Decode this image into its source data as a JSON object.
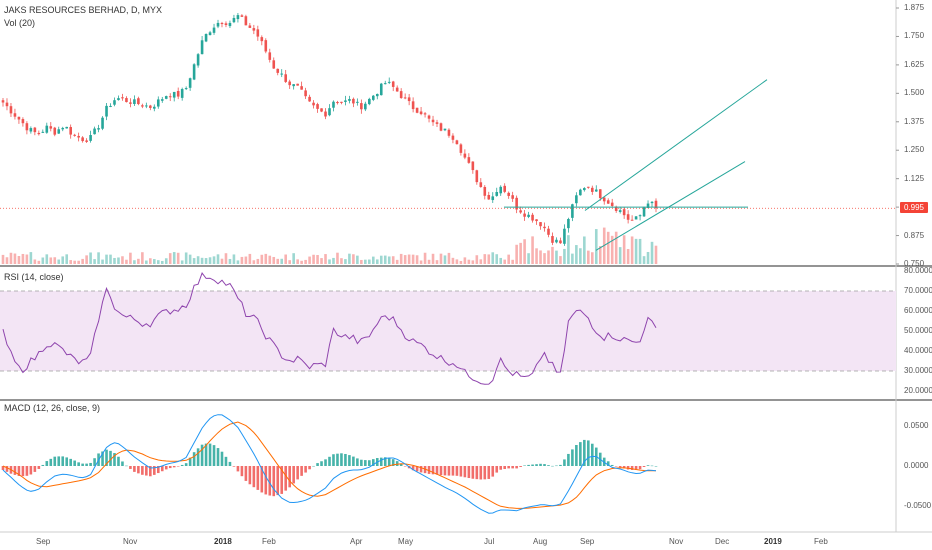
{
  "header": {
    "symbol_title": "JAKS RESOURCES BERHAD, D, MYX",
    "volume_label": "Vol (20)"
  },
  "rsi": {
    "label": "RSI (14, close)"
  },
  "macd": {
    "label": "MACD (12, 26, close, 9)"
  },
  "price_axis": {
    "ticks": [
      "1.875",
      "1.750",
      "1.625",
      "1.500",
      "1.375",
      "1.250",
      "1.125",
      "1.000",
      "0.875",
      "0.750"
    ],
    "last_price": "0.995"
  },
  "rsi_axis": {
    "ticks": [
      "80.0000",
      "70.0000",
      "60.0000",
      "50.0000",
      "40.0000",
      "30.0000",
      "20.0000"
    ]
  },
  "macd_axis": {
    "ticks": [
      "0.0500",
      "0.0000",
      "-0.0500"
    ]
  },
  "time_axis": {
    "labels": [
      "Sep",
      "Nov",
      "2018",
      "Feb",
      "Apr",
      "May",
      "Jul",
      "Aug",
      "Sep",
      "Nov",
      "Dec",
      "2019",
      "Feb"
    ]
  },
  "colors": {
    "up": "#26a69a",
    "down": "#ef5350",
    "rsi_line": "#8e44ad",
    "rsi_band": "#f3e5f5",
    "macd_line": "#2196f3",
    "signal_line": "#ff6d00",
    "trend_line": "#26a69a",
    "last_price": "#f44336"
  },
  "chart_data": [
    {
      "type": "candlestick",
      "title": "JAKS RESOURCES BERHAD, D, MYX",
      "x_labels": [
        "Sep",
        "Nov",
        "2018",
        "Feb",
        "Apr",
        "May",
        "Jul",
        "Aug",
        "Sep",
        "Nov",
        "Dec",
        "2019",
        "Feb"
      ],
      "ylim": [
        0.75,
        1.875
      ],
      "last_price": 0.995,
      "close_series": [
        1.46,
        1.42,
        1.38,
        1.34,
        1.32,
        1.35,
        1.33,
        1.36,
        1.32,
        1.3,
        1.3,
        1.36,
        1.44,
        1.48,
        1.47,
        1.46,
        1.45,
        1.44,
        1.47,
        1.5,
        1.49,
        1.52,
        1.63,
        1.74,
        1.79,
        1.82,
        1.81,
        1.84,
        1.8,
        1.77,
        1.7,
        1.62,
        1.58,
        1.54,
        1.52,
        1.46,
        1.43,
        1.41,
        1.47,
        1.46,
        1.47,
        1.44,
        1.47,
        1.51,
        1.55,
        1.52,
        1.48,
        1.44,
        1.42,
        1.38,
        1.35,
        1.33,
        1.3,
        1.22,
        1.15,
        1.08,
        1.03,
        1.1,
        1.06,
        1.0,
        0.97,
        0.95,
        0.92,
        0.86,
        0.84,
        0.96,
        1.06,
        1.1,
        1.07,
        1.04,
        1.01,
        0.98,
        0.94,
        0.95,
        1.03,
        0.995
      ],
      "volume_label": "Vol (20)"
    },
    {
      "type": "line",
      "name": "RSI (14, close)",
      "ylim": [
        15,
        80
      ],
      "band": [
        30,
        70
      ],
      "values": [
        49,
        37,
        30,
        34,
        38,
        44,
        43,
        40,
        36,
        34,
        36,
        57,
        72,
        60,
        57,
        56,
        54,
        54,
        58,
        60,
        61,
        63,
        72,
        78,
        77,
        75,
        73,
        66,
        58,
        56,
        49,
        43,
        38,
        35,
        36,
        32,
        33,
        33,
        51,
        47,
        47,
        44,
        47,
        54,
        58,
        55,
        49,
        45,
        43,
        40,
        37,
        35,
        34,
        29,
        27,
        25,
        24,
        36,
        30,
        28,
        26,
        28,
        40,
        33,
        27,
        56,
        60,
        58,
        51,
        47,
        48,
        46,
        45,
        44,
        56,
        51
      ]
    },
    {
      "type": "line",
      "name": "MACD (12, 26, close, 9)",
      "ylim": [
        -0.075,
        0.075
      ],
      "series": [
        {
          "name": "MACD",
          "values": [
            -0.005,
            -0.015,
            -0.025,
            -0.032,
            -0.03,
            -0.02,
            -0.012,
            -0.01,
            -0.012,
            -0.015,
            -0.012,
            0.008,
            0.025,
            0.03,
            0.022,
            0.012,
            0.004,
            -0.003,
            -0.001,
            0.003,
            0.005,
            0.01,
            0.03,
            0.05,
            0.062,
            0.065,
            0.058,
            0.048,
            0.03,
            0.012,
            -0.01,
            -0.028,
            -0.04,
            -0.046,
            -0.045,
            -0.042,
            -0.035,
            -0.028,
            -0.015,
            -0.008,
            -0.005,
            -0.005,
            -0.002,
            0.005,
            0.01,
            0.01,
            0.004,
            -0.004,
            -0.01,
            -0.016,
            -0.022,
            -0.028,
            -0.033,
            -0.04,
            -0.048,
            -0.055,
            -0.06,
            -0.055,
            -0.055,
            -0.056,
            -0.052,
            -0.05,
            -0.048,
            -0.05,
            -0.048,
            -0.03,
            -0.01,
            0.01,
            0.013,
            0.005,
            -0.002,
            -0.004,
            -0.008,
            -0.01,
            -0.005,
            -0.006
          ]
        },
        {
          "name": "Signal",
          "values": [
            0.0,
            -0.005,
            -0.012,
            -0.02,
            -0.025,
            -0.026,
            -0.024,
            -0.022,
            -0.02,
            -0.018,
            -0.015,
            -0.008,
            0.004,
            0.015,
            0.02,
            0.019,
            0.015,
            0.01,
            0.007,
            0.006,
            0.006,
            0.007,
            0.012,
            0.022,
            0.034,
            0.045,
            0.052,
            0.055,
            0.05,
            0.04,
            0.025,
            0.01,
            -0.005,
            -0.02,
            -0.03,
            -0.036,
            -0.038,
            -0.036,
            -0.03,
            -0.024,
            -0.018,
            -0.013,
            -0.009,
            -0.005,
            -0.001,
            0.002,
            0.003,
            0.001,
            -0.002,
            -0.006,
            -0.011,
            -0.016,
            -0.021,
            -0.026,
            -0.032,
            -0.038,
            -0.044,
            -0.05,
            -0.052,
            -0.053,
            -0.053,
            -0.052,
            -0.051,
            -0.05,
            -0.049,
            -0.046,
            -0.038,
            -0.024,
            -0.012,
            -0.006,
            -0.003,
            -0.002,
            -0.003,
            -0.005,
            -0.006,
            -0.006
          ]
        }
      ],
      "hist_colors": [
        "#ef5350",
        "#26a69a"
      ]
    }
  ]
}
